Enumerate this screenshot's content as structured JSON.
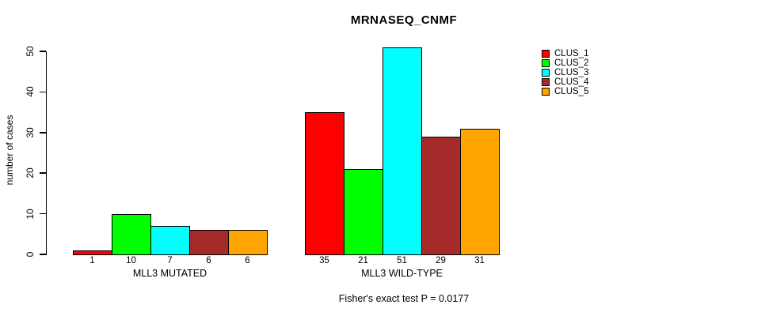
{
  "chart_data": {
    "type": "bar",
    "title": "MRNASEQ_CNMF",
    "subtitle": "Fisher's exact test P = 0.0177",
    "ylabel": "number of cases",
    "xlabel": "",
    "ylim": [
      0,
      50
    ],
    "yticks": [
      0,
      10,
      20,
      30,
      40,
      50
    ],
    "categories": [
      "MLL3 MUTATED",
      "MLL3 WILD-TYPE"
    ],
    "series": [
      {
        "name": "CLUS_1",
        "color": "#FF0000",
        "values": [
          1,
          35
        ]
      },
      {
        "name": "CLUS_2",
        "color": "#00FF00",
        "values": [
          10,
          21
        ]
      },
      {
        "name": "CLUS_3",
        "color": "#00FFFF",
        "values": [
          7,
          51
        ]
      },
      {
        "name": "CLUS_4",
        "color": "#A52A2A",
        "values": [
          6,
          29
        ]
      },
      {
        "name": "CLUS_5",
        "color": "#FFA500",
        "values": [
          6,
          31
        ]
      }
    ],
    "bar_value_labels": [
      [
        "1",
        "10",
        "7",
        "6",
        "6"
      ],
      [
        "35",
        "21",
        "51",
        "29",
        "31"
      ]
    ],
    "legend_position": "right",
    "grid": false,
    "bar_outline_color": "#000000",
    "background_color": "#FFFFFF"
  }
}
